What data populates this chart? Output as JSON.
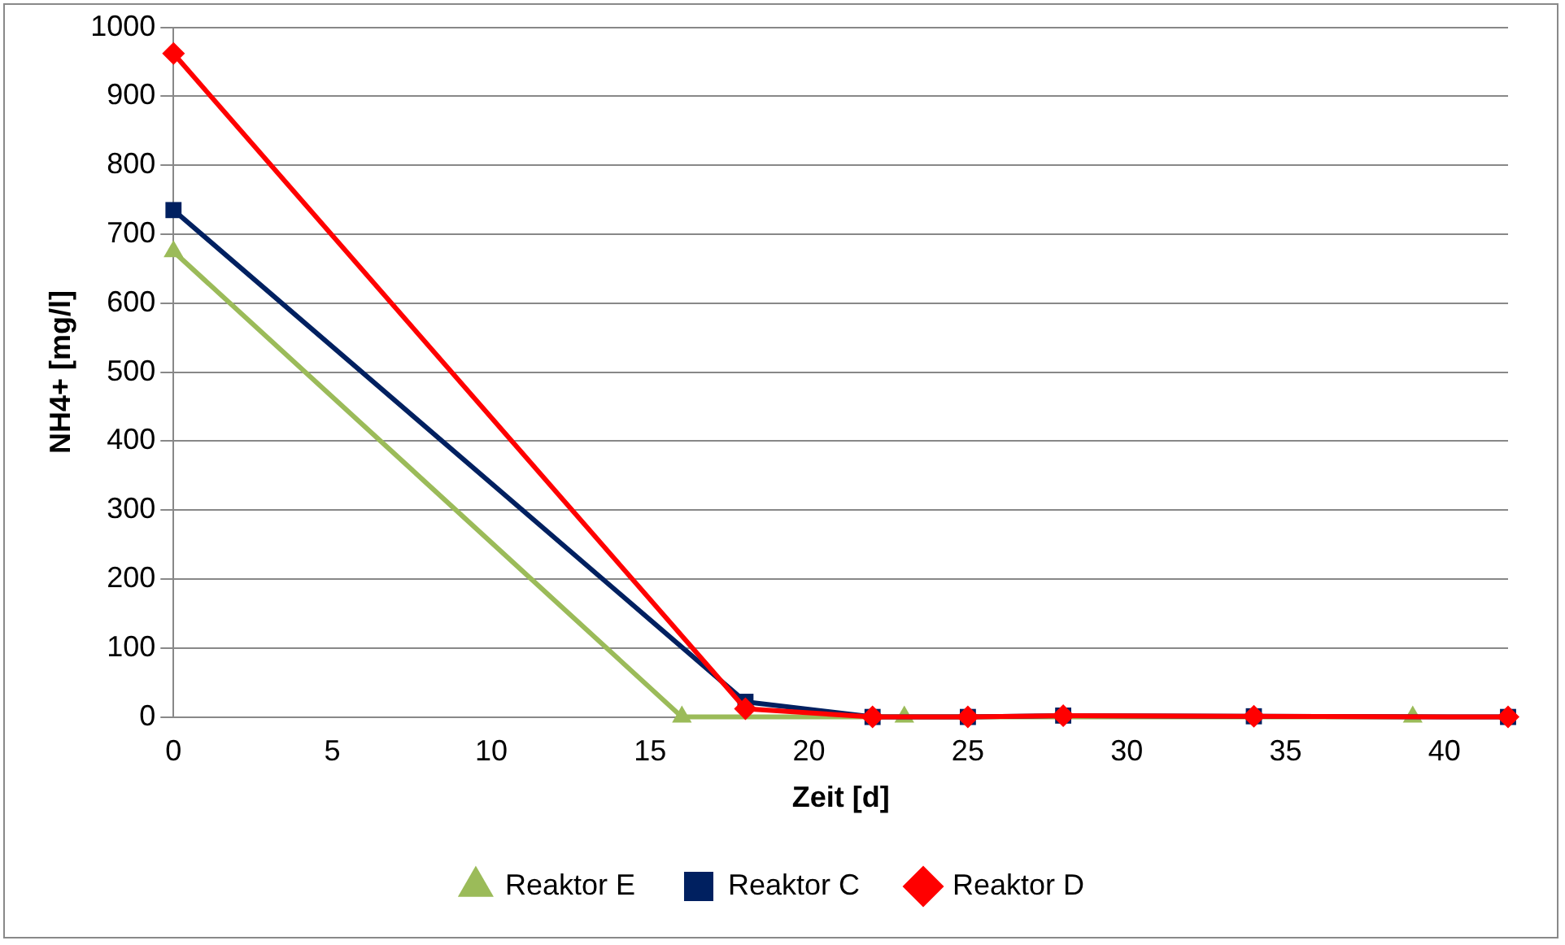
{
  "chart_data": {
    "type": "line",
    "xlabel": "Zeit [d]",
    "ylabel": "NH4+ [mg/l]",
    "xlim": [
      0,
      42
    ],
    "xticks": [
      0,
      5,
      10,
      15,
      20,
      25,
      30,
      35,
      40
    ],
    "ylim": [
      0,
      1000
    ],
    "yticks": [
      0,
      100,
      200,
      300,
      400,
      500,
      600,
      700,
      800,
      900,
      1000
    ],
    "grid": "y",
    "legend": "bottom",
    "line_style": "solid",
    "series": [
      {
        "name": "Reaktor E",
        "color": "#9bbb59",
        "marker": "triangle",
        "x": [
          0,
          16,
          23,
          39
        ],
        "values": [
          675,
          0,
          0,
          0
        ]
      },
      {
        "name": "Reaktor C",
        "color": "#002060",
        "marker": "square",
        "x": [
          0,
          18,
          22,
          25,
          28,
          34,
          42
        ],
        "values": [
          735,
          22,
          0,
          0,
          2,
          1,
          0
        ]
      },
      {
        "name": "Reaktor D",
        "color": "#ff0000",
        "marker": "diamond",
        "x": [
          0,
          18,
          22,
          25,
          28,
          34,
          42
        ],
        "values": [
          962,
          12,
          0,
          0,
          2,
          1,
          0
        ]
      }
    ]
  }
}
